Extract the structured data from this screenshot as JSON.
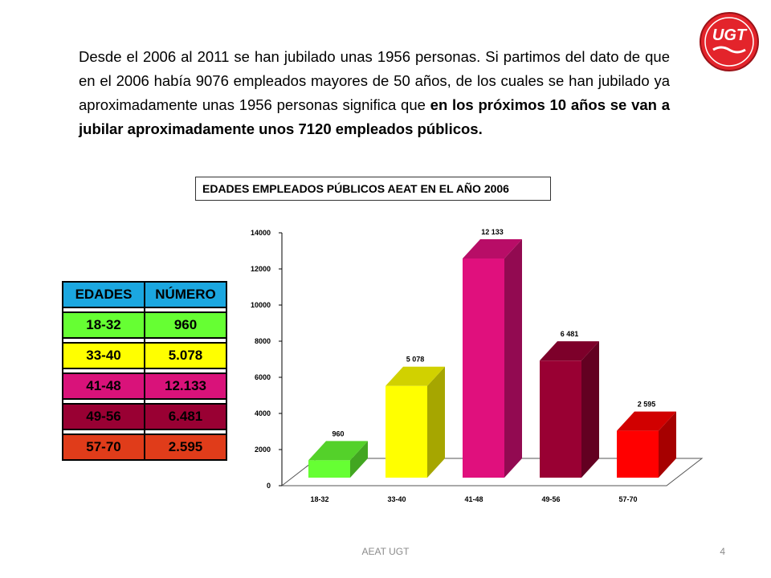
{
  "paragraph": {
    "normal": "Desde el 2006 al 2011  se han jubilado unas 1956 personas. Si partimos del dato de que en el 2006 había 9076 empleados mayores de 50 años, de los cuales se han jubilado ya aproximadamente unas 1956 personas significa que ",
    "bold": "en los próximos 10 años se van a jubilar aproximadamente unos 7120 empleados públicos."
  },
  "logo": {
    "text": "UGT",
    "color": "#e3242b"
  },
  "chart_title": "EDADES EMPLEADOS PÚBLICOS AEAT EN EL AÑO 2006",
  "table": {
    "headers": [
      "EDADES",
      "NÚMERO"
    ],
    "header_color": "#1ba7e0",
    "rows": [
      {
        "age": "18-32",
        "number": "960",
        "color": "#66ff33"
      },
      {
        "age": "33-40",
        "number": "5.078",
        "color": "#ffff00"
      },
      {
        "age": "41-48",
        "number": "12.133",
        "color": "#d9127a"
      },
      {
        "age": "49-56",
        "number": "6.481",
        "color": "#990033"
      },
      {
        "age": "57-70",
        "number": "2.595",
        "color": "#e03c1a"
      }
    ]
  },
  "chart_data": {
    "type": "bar",
    "categories": [
      "18-32",
      "33-40",
      "41-48",
      "49-56",
      "57-70"
    ],
    "values": [
      960,
      5078,
      12133,
      6481,
      2595
    ],
    "data_labels": [
      "960",
      "5 078",
      "12 133",
      "6 481",
      "2 595"
    ],
    "yticks": [
      "0",
      "2000",
      "4000",
      "6000",
      "8000",
      "10000",
      "12000",
      "14000"
    ],
    "ylim": [
      0,
      14000
    ],
    "colors": [
      "#66ff33",
      "#ffff00",
      "#e0107d",
      "#990033",
      "#ff0000"
    ],
    "grid": false,
    "legend": "none",
    "style": "3d"
  },
  "footer": {
    "center": "AEAT UGT",
    "page": "4"
  }
}
